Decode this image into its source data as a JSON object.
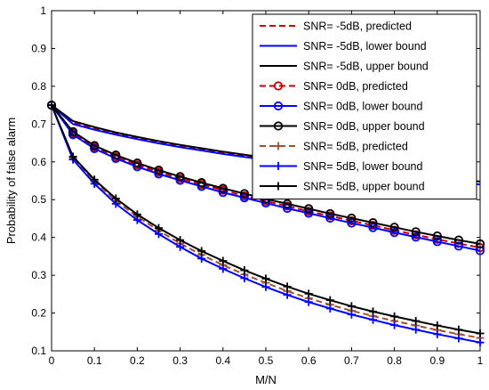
{
  "chart_data": {
    "type": "line",
    "title": "",
    "xlabel": "M/N",
    "ylabel": "Probability of false alarm",
    "xlim": [
      0,
      1
    ],
    "ylim": [
      0.1,
      1
    ],
    "xticks": [
      "0",
      "0.1",
      "0.2",
      "0.3",
      "0.4",
      "0.5",
      "0.6",
      "0.7",
      "0.8",
      "0.9",
      "1"
    ],
    "yticks": [
      "0.1",
      "0.2",
      "0.3",
      "0.4",
      "0.5",
      "0.6",
      "0.7",
      "0.8",
      "0.9",
      "1"
    ],
    "grid": false,
    "legend_position": "top-right",
    "x": [
      0,
      0.05,
      0.1,
      0.15,
      0.2,
      0.25,
      0.3,
      0.35,
      0.4,
      0.45,
      0.5,
      0.55,
      0.6,
      0.65,
      0.7,
      0.75,
      0.8,
      0.85,
      0.9,
      0.95,
      1
    ],
    "series": [
      {
        "name": "SNR= -5dB, predicted",
        "color": "#c00000",
        "style": "dashed",
        "marker": "none",
        "values": [
          0.75,
          0.703,
          0.688,
          0.675,
          0.663,
          0.652,
          0.642,
          0.633,
          0.624,
          0.616,
          0.608,
          0.601,
          0.594,
          0.587,
          0.58,
          0.574,
          0.567,
          0.561,
          0.555,
          0.549,
          0.544
        ]
      },
      {
        "name": "SNR= -5dB, lower bound",
        "color": "#0000ff",
        "style": "solid",
        "marker": "none",
        "values": [
          0.75,
          0.7,
          0.685,
          0.672,
          0.66,
          0.649,
          0.639,
          0.63,
          0.621,
          0.613,
          0.605,
          0.598,
          0.591,
          0.584,
          0.577,
          0.571,
          0.564,
          0.558,
          0.552,
          0.546,
          0.54
        ]
      },
      {
        "name": "SNR= -5dB, upper bound",
        "color": "#000000",
        "style": "solid",
        "marker": "none",
        "values": [
          0.75,
          0.708,
          0.692,
          0.678,
          0.666,
          0.655,
          0.645,
          0.636,
          0.627,
          0.619,
          0.611,
          0.604,
          0.597,
          0.59,
          0.583,
          0.577,
          0.57,
          0.564,
          0.558,
          0.553,
          0.548
        ]
      },
      {
        "name": "SNR= 0dB, predicted",
        "color": "#c00000",
        "style": "dashed",
        "marker": "circle",
        "values": [
          0.75,
          0.676,
          0.639,
          0.613,
          0.592,
          0.573,
          0.556,
          0.54,
          0.525,
          0.51,
          0.496,
          0.483,
          0.469,
          0.457,
          0.444,
          0.432,
          0.419,
          0.407,
          0.395,
          0.384,
          0.373
        ]
      },
      {
        "name": "SNR= 0dB, lower bound",
        "color": "#0000ff",
        "style": "solid",
        "marker": "circle",
        "values": [
          0.75,
          0.672,
          0.635,
          0.609,
          0.587,
          0.568,
          0.551,
          0.535,
          0.519,
          0.505,
          0.491,
          0.477,
          0.464,
          0.451,
          0.438,
          0.426,
          0.413,
          0.401,
          0.389,
          0.377,
          0.365
        ]
      },
      {
        "name": "SNR= 0dB, upper bound",
        "color": "#000000",
        "style": "solid",
        "marker": "circle",
        "values": [
          0.75,
          0.68,
          0.643,
          0.618,
          0.597,
          0.578,
          0.561,
          0.545,
          0.53,
          0.516,
          0.502,
          0.489,
          0.476,
          0.463,
          0.451,
          0.439,
          0.427,
          0.415,
          0.404,
          0.393,
          0.383
        ]
      },
      {
        "name": "SNR= 5dB, predicted",
        "color": "#a0522d",
        "style": "dashed",
        "marker": "plus",
        "values": [
          0.75,
          0.61,
          0.548,
          0.497,
          0.455,
          0.418,
          0.384,
          0.354,
          0.327,
          0.302,
          0.28,
          0.258,
          0.239,
          0.222,
          0.206,
          0.192,
          0.179,
          0.167,
          0.155,
          0.144,
          0.134
        ]
      },
      {
        "name": "SNR= 5dB, lower bound",
        "color": "#0000ff",
        "style": "solid",
        "marker": "plus",
        "values": [
          0.75,
          0.606,
          0.542,
          0.489,
          0.446,
          0.409,
          0.375,
          0.344,
          0.317,
          0.292,
          0.269,
          0.248,
          0.229,
          0.212,
          0.196,
          0.182,
          0.168,
          0.156,
          0.144,
          0.133,
          0.122
        ]
      },
      {
        "name": "SNR= 5dB, upper bound",
        "color": "#000000",
        "style": "solid",
        "marker": "plus",
        "values": [
          0.75,
          0.614,
          0.553,
          0.503,
          0.461,
          0.425,
          0.393,
          0.364,
          0.338,
          0.313,
          0.291,
          0.27,
          0.251,
          0.234,
          0.218,
          0.204,
          0.191,
          0.179,
          0.167,
          0.156,
          0.146
        ]
      }
    ]
  }
}
